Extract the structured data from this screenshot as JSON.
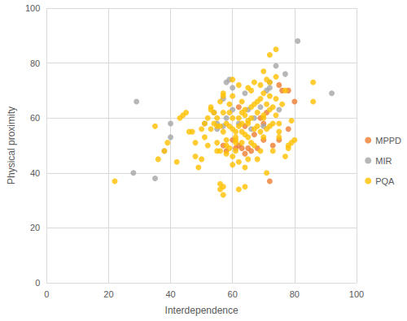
{
  "chart_data": {
    "type": "scatter",
    "x_label": "Interdependence",
    "y_label": "Physical proximity",
    "xlim": [
      0,
      100
    ],
    "xticks": [
      0,
      20,
      40,
      60,
      80,
      100
    ],
    "ylim": [
      0,
      100
    ],
    "yticks": [
      0,
      20,
      40,
      60,
      80,
      100
    ],
    "grid": true,
    "legend": "right",
    "marker": "circle",
    "series": [
      {
        "name": "MPPD",
        "color": "#ED7D31",
        "x": [
          72,
          70,
          75,
          76,
          80,
          78,
          75,
          68,
          65,
          63,
          62,
          66,
          60,
          57,
          62,
          70,
          71,
          69,
          64,
          73,
          78,
          67,
          61,
          58,
          64
        ],
        "values": [
          37,
          52,
          72,
          70,
          66,
          56,
          52,
          49,
          49,
          49,
          50,
          48,
          52,
          50,
          64,
          58,
          62,
          60,
          57,
          50,
          70,
          54,
          49,
          48,
          47
        ]
      },
      {
        "name": "MIR",
        "color": "#A5A5A5",
        "x": [
          29,
          28,
          35,
          38,
          40,
          40,
          51,
          54,
          55,
          57,
          58,
          58,
          59,
          60,
          64,
          65,
          67,
          69,
          72,
          72,
          74,
          75,
          77,
          81,
          92,
          62,
          55,
          57,
          66,
          70,
          71,
          60
        ],
        "values": [
          66,
          40,
          38,
          48,
          53,
          58,
          58,
          62,
          58,
          67,
          73,
          60,
          74,
          71,
          69,
          63,
          60,
          64,
          71,
          73,
          79,
          63,
          76,
          88,
          69,
          58,
          56,
          57,
          56,
          57,
          70,
          63
        ]
      },
      {
        "name": "PQA",
        "color": "#FFC000",
        "x": [
          22,
          35,
          36,
          42,
          43,
          44,
          45,
          46,
          47,
          48,
          48,
          49,
          50,
          51,
          52,
          52,
          53,
          53,
          54,
          54,
          55,
          55,
          56,
          56,
          56,
          56,
          57,
          57,
          57,
          57,
          57,
          58,
          58,
          58,
          58,
          59,
          59,
          59,
          59,
          60,
          60,
          60,
          60,
          60,
          60,
          61,
          61,
          61,
          61,
          61,
          62,
          62,
          62,
          62,
          63,
          63,
          63,
          63,
          64,
          64,
          64,
          64,
          64,
          65,
          65,
          65,
          65,
          66,
          66,
          66,
          66,
          67,
          67,
          67,
          68,
          68,
          68,
          68,
          69,
          69,
          69,
          70,
          70,
          70,
          70,
          71,
          71,
          71,
          72,
          72,
          72,
          72,
          73,
          73,
          73,
          74,
          74,
          74,
          75,
          75,
          76,
          77,
          77,
          78,
          78,
          79,
          79,
          80,
          86,
          86,
          38,
          39,
          50,
          51,
          55,
          53,
          56,
          62,
          67,
          69,
          71,
          65,
          63,
          70,
          74,
          75,
          72,
          55,
          57
        ],
        "values": [
          37,
          57,
          45,
          44,
          60,
          61,
          62,
          55,
          55,
          51,
          46,
          42,
          45,
          58,
          50,
          60,
          63,
          64,
          58,
          62,
          48,
          57,
          48,
          57,
          34,
          36,
          32,
          35,
          55,
          68,
          69,
          58,
          52,
          47,
          50,
          57,
          62,
          49,
          65,
          43,
          46,
          56,
          60,
          68,
          74,
          48,
          52,
          55,
          53,
          51,
          44,
          34,
          57,
          60,
          55,
          58,
          66,
          51,
          42,
          35,
          54,
          63,
          61,
          58,
          53,
          45,
          71,
          70,
          64,
          51,
          60,
          50,
          56,
          65,
          57,
          62,
          66,
          45,
          55,
          48,
          67,
          69,
          60,
          77,
          53,
          40,
          65,
          56,
          83,
          73,
          68,
          63,
          58,
          48,
          64,
          85,
          75,
          61,
          55,
          58,
          65,
          46,
          70,
          50,
          49,
          59,
          51,
          52,
          73,
          66,
          48,
          51,
          56,
          53,
          51,
          56,
          66,
          72,
          73,
          72,
          74,
          59,
          62,
          61,
          67,
          53,
          57,
          60,
          62
        ]
      }
    ]
  }
}
